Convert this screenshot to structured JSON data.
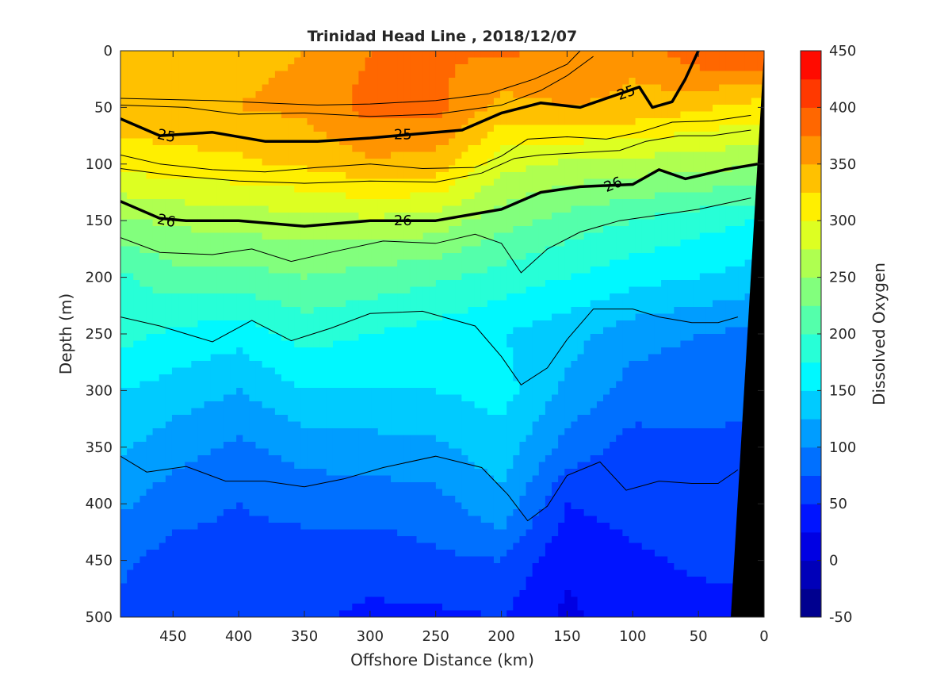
{
  "chart_data": {
    "type": "heatmap",
    "title": "Trinidad Head Line , 2018/12/07",
    "xlabel": "Offshore Distance (km)",
    "ylabel": "Depth (m)",
    "colorbar_label": "Dissolved Oxygen",
    "xlim": [
      490,
      0
    ],
    "ylim": [
      0,
      500
    ],
    "x_reversed": true,
    "y_reversed": true,
    "x_ticks": [
      "450",
      "400",
      "350",
      "300",
      "250",
      "200",
      "150",
      "100",
      "50",
      "0"
    ],
    "y_ticks": [
      "0",
      "50",
      "100",
      "150",
      "200",
      "250",
      "300",
      "350",
      "400",
      "450",
      "500"
    ],
    "colorbar_ticks": [
      "450",
      "400",
      "350",
      "300",
      "250",
      "200",
      "150",
      "100",
      "50",
      "0",
      "-50"
    ],
    "colorbar_range": [
      -50,
      450
    ],
    "colorbar_step": 25,
    "colors": [
      "#00008f",
      "#0000b9",
      "#0000e3",
      "#0014ff",
      "#0042ff",
      "#0070ff",
      "#009dff",
      "#00cbff",
      "#00f8ff",
      "#27ffd7",
      "#54ffab",
      "#82ff7d",
      "#afff50",
      "#ddff22",
      "#ffef00",
      "#ffc100",
      "#ff9400",
      "#ff6700",
      "#ff3900",
      "#ff0b00",
      "#e30000",
      "#b90000",
      "#8f0000"
    ],
    "oxygen_field": {
      "distances_km": [
        490,
        450,
        400,
        350,
        300,
        250,
        200,
        150,
        100,
        50,
        10
      ],
      "depths_m": [
        0,
        50,
        100,
        150,
        200,
        250,
        300,
        350,
        400,
        450,
        500
      ],
      "values": [
        [
          345,
          345,
          345,
          350,
          375,
          375,
          380,
          370,
          355,
          395,
          405
        ],
        [
          340,
          345,
          350,
          355,
          385,
          385,
          340,
          350,
          345,
          330,
          315
        ],
        [
          310,
          315,
          320,
          330,
          345,
          340,
          285,
          270,
          265,
          260,
          255
        ],
        [
          245,
          255,
          260,
          265,
          270,
          265,
          235,
          215,
          200,
          185,
          175
        ],
        [
          195,
          215,
          215,
          225,
          215,
          205,
          190,
          175,
          160,
          150,
          140
        ],
        [
          185,
          170,
          160,
          185,
          175,
          165,
          150,
          135,
          110,
          100,
          95
        ],
        [
          150,
          140,
          125,
          150,
          150,
          150,
          160,
          120,
          90,
          85,
          80
        ],
        [
          130,
          110,
          95,
          110,
          115,
          120,
          140,
          90,
          65,
          70,
          70
        ],
        [
          105,
          85,
          75,
          85,
          85,
          90,
          120,
          50,
          60,
          70,
          60
        ],
        [
          80,
          65,
          65,
          60,
          60,
          70,
          75,
          30,
          45,
          55,
          55
        ],
        [
          70,
          55,
          50,
          55,
          45,
          45,
          50,
          20,
          40,
          40,
          45
        ]
      ]
    },
    "density_contours": {
      "bold_labeled": [
        {
          "label": "25",
          "points": [
            [
              490,
              60
            ],
            [
              460,
              75
            ],
            [
              420,
              72
            ],
            [
              380,
              80
            ],
            [
              340,
              80
            ],
            [
              300,
              77
            ],
            [
              260,
              73
            ],
            [
              230,
              70
            ],
            [
              200,
              55
            ],
            [
              170,
              46
            ],
            [
              140,
              50
            ],
            [
              115,
              40
            ],
            [
              95,
              32
            ],
            [
              85,
              50
            ],
            [
              70,
              45
            ],
            [
              60,
              25
            ],
            [
              50,
              0
            ]
          ]
        },
        {
          "label": "26",
          "points": [
            [
              490,
              133
            ],
            [
              460,
              148
            ],
            [
              440,
              150
            ],
            [
              400,
              150
            ],
            [
              350,
              155
            ],
            [
              300,
              150
            ],
            [
              250,
              150
            ],
            [
              200,
              140
            ],
            [
              170,
              125
            ],
            [
              140,
              120
            ],
            [
              100,
              118
            ],
            [
              80,
              105
            ],
            [
              60,
              113
            ],
            [
              30,
              105
            ],
            [
              5,
              100
            ]
          ]
        }
      ],
      "thin": [
        {
          "points": [
            [
              490,
              42
            ],
            [
              420,
              44
            ],
            [
              380,
              46
            ],
            [
              340,
              48
            ],
            [
              300,
              47
            ],
            [
              250,
              44
            ],
            [
              210,
              38
            ],
            [
              175,
              25
            ],
            [
              150,
              12
            ],
            [
              140,
              0
            ]
          ]
        },
        {
          "points": [
            [
              490,
              48
            ],
            [
              440,
              50
            ],
            [
              400,
              56
            ],
            [
              350,
              55
            ],
            [
              300,
              58
            ],
            [
              250,
              56
            ],
            [
              200,
              48
            ],
            [
              170,
              35
            ],
            [
              150,
              22
            ],
            [
              130,
              5
            ]
          ]
        },
        {
          "points": [
            [
              490,
              92
            ],
            [
              460,
              100
            ],
            [
              420,
              105
            ],
            [
              380,
              107
            ],
            [
              340,
              103
            ],
            [
              300,
              100
            ],
            [
              260,
              104
            ],
            [
              220,
              103
            ],
            [
              200,
              93
            ],
            [
              180,
              78
            ],
            [
              150,
              76
            ],
            [
              120,
              78
            ],
            [
              95,
              72
            ],
            [
              70,
              63
            ],
            [
              40,
              62
            ],
            [
              10,
              57
            ]
          ]
        },
        {
          "points": [
            [
              490,
              104
            ],
            [
              450,
              110
            ],
            [
              400,
              115
            ],
            [
              350,
              117
            ],
            [
              300,
              115
            ],
            [
              250,
              116
            ],
            [
              215,
              108
            ],
            [
              190,
              95
            ],
            [
              170,
              92
            ],
            [
              140,
              90
            ],
            [
              110,
              88
            ],
            [
              90,
              80
            ],
            [
              65,
              75
            ],
            [
              40,
              75
            ],
            [
              10,
              70
            ]
          ]
        },
        {
          "points": [
            [
              490,
              165
            ],
            [
              460,
              178
            ],
            [
              420,
              180
            ],
            [
              390,
              175
            ],
            [
              360,
              186
            ],
            [
              330,
              178
            ],
            [
              290,
              168
            ],
            [
              250,
              170
            ],
            [
              220,
              162
            ],
            [
              200,
              170
            ],
            [
              185,
              196
            ],
            [
              165,
              175
            ],
            [
              140,
              160
            ],
            [
              110,
              150
            ],
            [
              80,
              145
            ],
            [
              50,
              140
            ],
            [
              10,
              130
            ]
          ]
        },
        {
          "points": [
            [
              490,
              235
            ],
            [
              460,
              243
            ],
            [
              420,
              257
            ],
            [
              390,
              238
            ],
            [
              360,
              256
            ],
            [
              330,
              245
            ],
            [
              300,
              232
            ],
            [
              260,
              230
            ],
            [
              220,
              243
            ],
            [
              200,
              270
            ],
            [
              185,
              295
            ],
            [
              165,
              280
            ],
            [
              150,
              255
            ],
            [
              130,
              228
            ],
            [
              100,
              228
            ],
            [
              80,
              235
            ],
            [
              55,
              240
            ],
            [
              35,
              240
            ],
            [
              20,
              235
            ]
          ]
        },
        {
          "points": [
            [
              490,
              358
            ],
            [
              470,
              372
            ],
            [
              440,
              367
            ],
            [
              410,
              380
            ],
            [
              380,
              380
            ],
            [
              350,
              385
            ],
            [
              320,
              378
            ],
            [
              290,
              368
            ],
            [
              250,
              358
            ],
            [
              215,
              368
            ],
            [
              195,
              392
            ],
            [
              180,
              415
            ],
            [
              165,
              402
            ],
            [
              150,
              375
            ],
            [
              125,
              363
            ],
            [
              105,
              388
            ],
            [
              80,
              380
            ],
            [
              55,
              382
            ],
            [
              35,
              382
            ],
            [
              20,
              370
            ]
          ]
        }
      ]
    },
    "seafloor_color": "#000000"
  }
}
